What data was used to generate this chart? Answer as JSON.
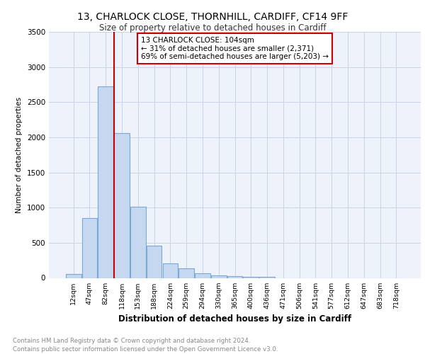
{
  "title1": "13, CHARLOCK CLOSE, THORNHILL, CARDIFF, CF14 9FF",
  "title2": "Size of property relative to detached houses in Cardiff",
  "xlabel": "Distribution of detached houses by size in Cardiff",
  "ylabel": "Number of detached properties",
  "footnote1": "Contains HM Land Registry data © Crown copyright and database right 2024.",
  "footnote2": "Contains public sector information licensed under the Open Government Licence v3.0.",
  "annotation_line1": "13 CHARLOCK CLOSE: 104sqm",
  "annotation_line2": "← 31% of detached houses are smaller (2,371)",
  "annotation_line3": "69% of semi-detached houses are larger (5,203) →",
  "bar_labels": [
    "12sqm",
    "47sqm",
    "82sqm",
    "118sqm",
    "153sqm",
    "188sqm",
    "224sqm",
    "259sqm",
    "294sqm",
    "330sqm",
    "365sqm",
    "400sqm",
    "436sqm",
    "471sqm",
    "506sqm",
    "541sqm",
    "577sqm",
    "612sqm",
    "647sqm",
    "683sqm",
    "718sqm"
  ],
  "bar_values": [
    55,
    850,
    2720,
    2060,
    1010,
    460,
    205,
    140,
    65,
    40,
    28,
    20,
    20,
    0,
    0,
    0,
    0,
    0,
    0,
    0,
    0
  ],
  "bar_color": "#c5d8f0",
  "bar_edge_color": "#7aaad4",
  "vline_color": "#cc0000",
  "ylim": [
    0,
    3500
  ],
  "yticks": [
    0,
    500,
    1000,
    1500,
    2000,
    2500,
    3000,
    3500
  ],
  "annotation_box_color": "#cc0000",
  "grid_color": "#c8d4e8",
  "bg_color": "#eef2fa"
}
